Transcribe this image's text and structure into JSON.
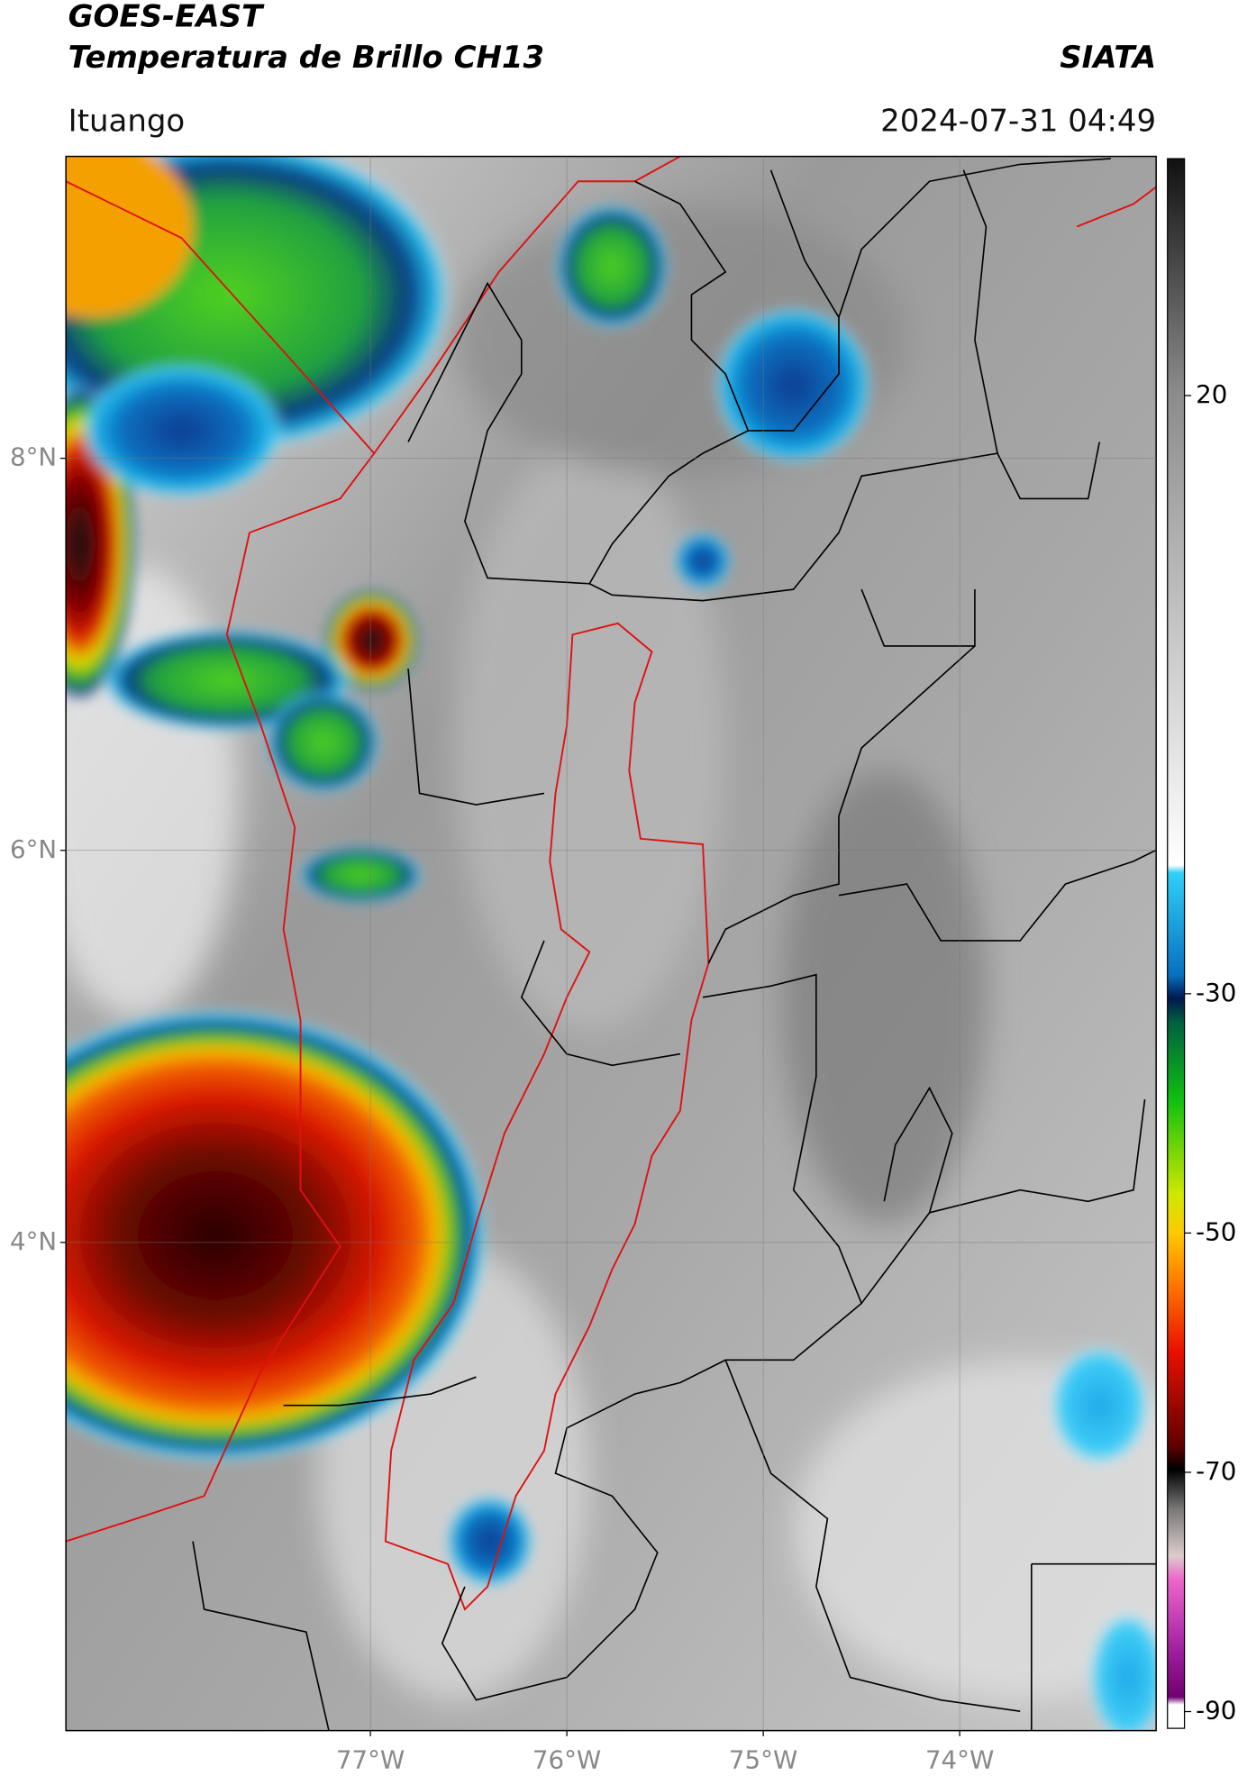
{
  "header": {
    "title": "GOES-EAST",
    "subtitle": "Temperatura de Brillo CH13",
    "agency": "SIATA",
    "location": "Ituango",
    "datetime": "2024-07-31 04:49"
  },
  "map": {
    "xlim": [
      -78.55,
      -73.0
    ],
    "ylim": [
      1.51,
      9.54
    ],
    "xticks": [
      {
        "value": -77,
        "label": "77°W"
      },
      {
        "value": -76,
        "label": "76°W"
      },
      {
        "value": -75,
        "label": "75°W"
      },
      {
        "value": -74,
        "label": "74°W"
      }
    ],
    "yticks": [
      {
        "value": 8,
        "label": "8°N"
      },
      {
        "value": 6,
        "label": "6°N"
      },
      {
        "value": 4,
        "label": "4°N"
      }
    ],
    "grid": true
  },
  "colorbar": {
    "clim": [
      -91.4,
      39.8
    ],
    "ticks": [
      20,
      -30,
      -50,
      -70,
      -90
    ]
  }
}
